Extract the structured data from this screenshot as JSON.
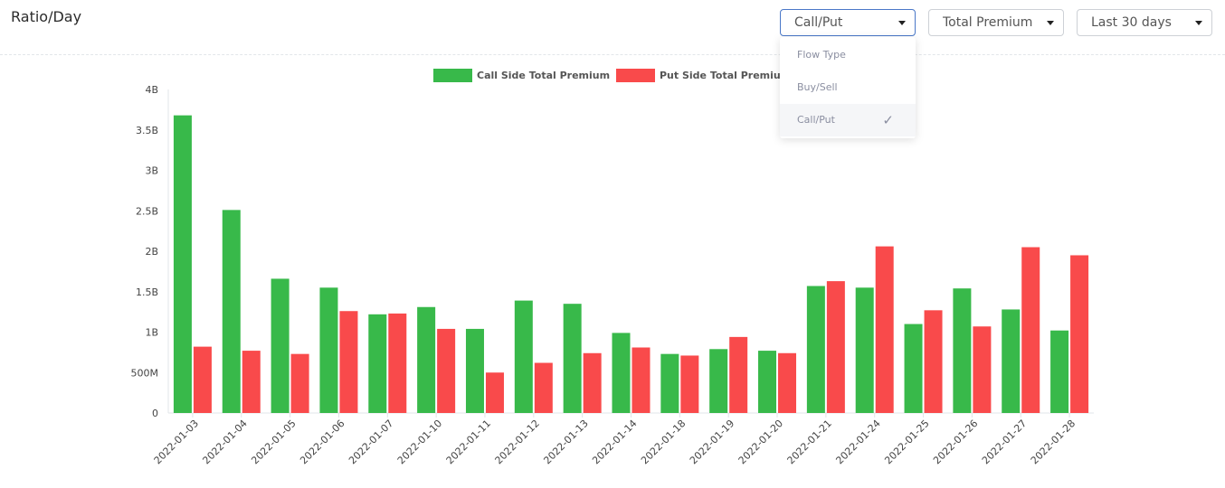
{
  "page": {
    "title": "Ratio/Day"
  },
  "controls": {
    "group_by": {
      "value": "Call/Put",
      "icon": "caret-down-icon"
    },
    "metric": {
      "value": "Total Premium",
      "icon": "caret-down-icon"
    },
    "range": {
      "value": "Last 30 days",
      "icon": "caret-down-icon"
    }
  },
  "menu": {
    "items": [
      {
        "label": "Flow Type",
        "selected": false
      },
      {
        "label": "Buy/Sell",
        "selected": false
      },
      {
        "label": "Call/Put",
        "selected": true
      }
    ],
    "check_icon": "✓"
  },
  "chart_data": {
    "type": "bar",
    "categories": [
      "2022-01-03",
      "2022-01-04",
      "2022-01-05",
      "2022-01-06",
      "2022-01-07",
      "2022-01-10",
      "2022-01-11",
      "2022-01-12",
      "2022-01-13",
      "2022-01-14",
      "2022-01-18",
      "2022-01-19",
      "2022-01-20",
      "2022-01-21",
      "2022-01-24",
      "2022-01-25",
      "2022-01-26",
      "2022-01-27",
      "2022-01-28"
    ],
    "series": [
      {
        "name": "Call Side Total Premium",
        "color": "#38b94a",
        "values": [
          3680000000.0,
          2510000000.0,
          1660000000.0,
          1550000000.0,
          1220000000.0,
          1310000000.0,
          1040000000.0,
          1390000000.0,
          1350000000.0,
          990000000.0,
          730000000.0,
          790000000.0,
          770000000.0,
          1570000000.0,
          1550000000.0,
          1100000000.0,
          1540000000.0,
          1280000000.0,
          1020000000.0
        ]
      },
      {
        "name": "Put Side Total Premium",
        "color": "#f94a4b",
        "values": [
          820000000.0,
          770000000.0,
          730000000.0,
          1260000000.0,
          1230000000.0,
          1040000000.0,
          500000000.0,
          620000000.0,
          740000000.0,
          810000000.0,
          710000000.0,
          940000000.0,
          740000000.0,
          1630000000.0,
          2060000000.0,
          1270000000.0,
          1070000000.0,
          2050000000.0,
          1950000000.0
        ]
      }
    ],
    "yticks": [
      {
        "value": 0,
        "label": "0"
      },
      {
        "value": 500000000,
        "label": "500M"
      },
      {
        "value": 1000000000,
        "label": "1B"
      },
      {
        "value": 1500000000,
        "label": "1.5B"
      },
      {
        "value": 2000000000,
        "label": "2B"
      },
      {
        "value": 2500000000,
        "label": "2.5B"
      },
      {
        "value": 3000000000,
        "label": "3B"
      },
      {
        "value": 3500000000,
        "label": "3.5B"
      },
      {
        "value": 4000000000,
        "label": "4B"
      }
    ],
    "ylim": [
      0,
      4000000000
    ],
    "grid": false,
    "legend_position": "top-center"
  }
}
